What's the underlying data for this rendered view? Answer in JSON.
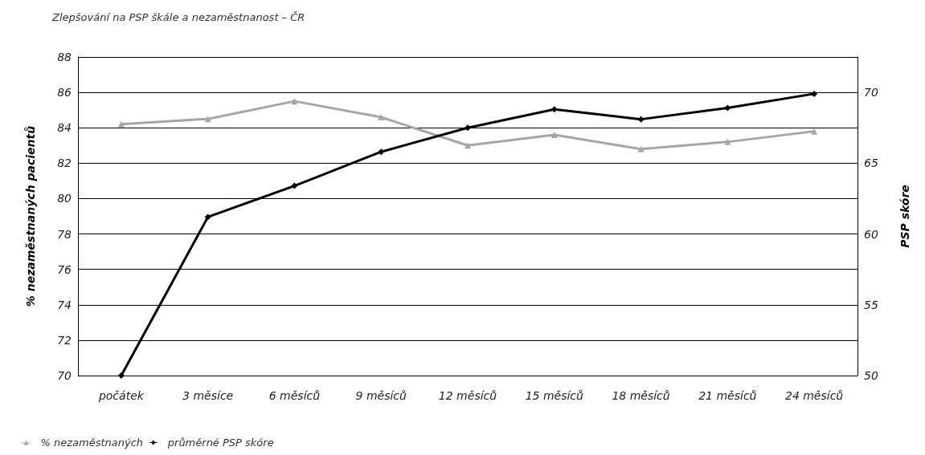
{
  "chart_data": {
    "type": "line",
    "title": "Zlepšování na PSP škále a nezaměstnanost – ČR",
    "ylabel": "% nezaměstnaných pacientů",
    "y2label": "PSP skóre",
    "categories": [
      "počátek",
      "3 měsíce",
      "6 měsíců",
      "9 měsíců",
      "12 měsíců",
      "15 měsíců",
      "18 měsíců",
      "21 měsíců",
      "24 měsíců"
    ],
    "series": [
      {
        "name": "% nezaměstnaných",
        "color": "#a6a6a6",
        "marker": "triangle",
        "values": [
          84.2,
          84.5,
          85.5,
          84.6,
          83.0,
          83.6,
          82.8,
          83.2,
          83.8
        ]
      },
      {
        "name": "průměrné PSP skóre",
        "color": "#000000",
        "marker": "diamond",
        "axis": "y2",
        "values": [
          50,
          61.2,
          63.4,
          65.8,
          67.5,
          68.8,
          68.1,
          68.9,
          69.9
        ]
      }
    ],
    "ylim": [
      70,
      88
    ],
    "yticks": [
      70,
      72,
      74,
      76,
      78,
      80,
      82,
      84,
      86,
      88
    ],
    "y2lim": [
      50,
      72.5
    ],
    "y2ticks": [
      50,
      55,
      60,
      65,
      70
    ],
    "grid": "y",
    "legend": "bottom left",
    "line_style": "solid"
  }
}
